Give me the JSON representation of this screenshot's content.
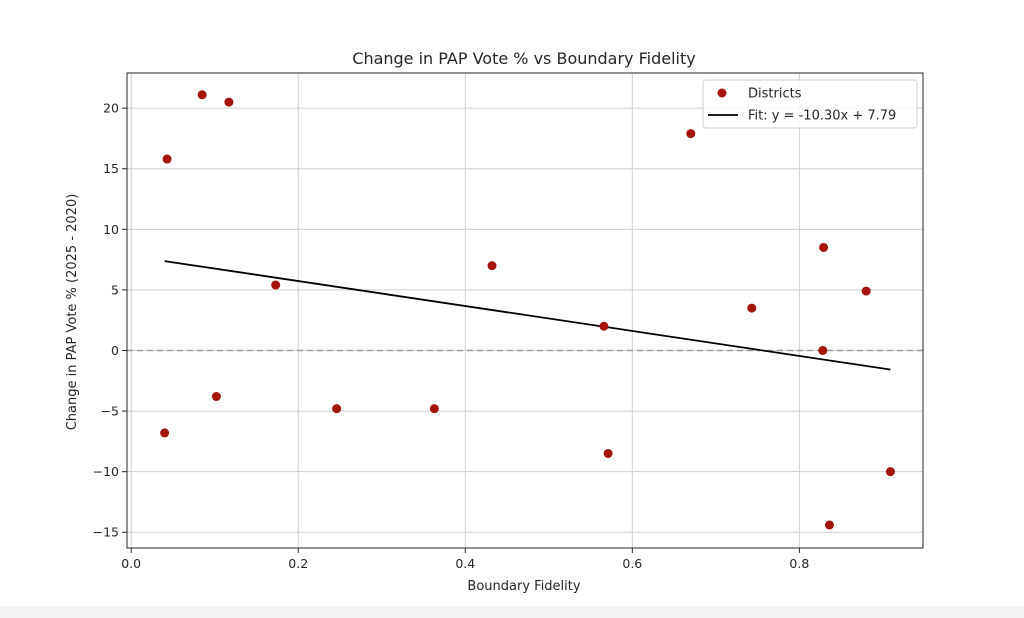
{
  "chart_data": {
    "type": "scatter",
    "title": "Change in PAP Vote % vs Boundary Fidelity",
    "xlabel": "Boundary Fidelity",
    "ylabel": "Change in PAP Vote % (2025 - 2020)",
    "xlim": [
      -0.005,
      0.948
    ],
    "ylim": [
      -16.3,
      22.9
    ],
    "xticks": [
      0.0,
      0.2,
      0.4,
      0.6,
      0.8
    ],
    "xtick_labels": [
      "0.0",
      "0.2",
      "0.4",
      "0.6",
      "0.8"
    ],
    "yticks": [
      -15,
      -10,
      -5,
      0,
      5,
      10,
      15,
      20
    ],
    "ytick_labels": [
      "−15",
      "−10",
      "−5",
      "0",
      "5",
      "10",
      "15",
      "20"
    ],
    "grid": true,
    "legend_position": "top-right",
    "series": [
      {
        "name": "Districts",
        "kind": "scatter",
        "color": "#a3150a",
        "points": [
          {
            "x": 0.043,
            "y": 15.8
          },
          {
            "x": 0.085,
            "y": 21.1
          },
          {
            "x": 0.117,
            "y": 20.5
          },
          {
            "x": 0.173,
            "y": 5.4
          },
          {
            "x": 0.04,
            "y": -6.8
          },
          {
            "x": 0.102,
            "y": -3.8
          },
          {
            "x": 0.246,
            "y": -4.8
          },
          {
            "x": 0.363,
            "y": -4.8
          },
          {
            "x": 0.432,
            "y": 7.0
          },
          {
            "x": 0.566,
            "y": 2.0
          },
          {
            "x": 0.571,
            "y": -8.5
          },
          {
            "x": 0.67,
            "y": 17.9
          },
          {
            "x": 0.743,
            "y": 3.5
          },
          {
            "x": 0.829,
            "y": 8.5
          },
          {
            "x": 0.828,
            "y": 0.0
          },
          {
            "x": 0.836,
            "y": -14.4
          },
          {
            "x": 0.88,
            "y": 4.9
          },
          {
            "x": 0.909,
            "y": -10.0
          }
        ]
      },
      {
        "name": "Fit: y = -10.30x + 7.79",
        "kind": "line",
        "color": "#000000",
        "slope": -10.3,
        "intercept": 7.79,
        "x_range": [
          0.04,
          0.909
        ]
      }
    ],
    "reference_line": {
      "y": 0,
      "style": "dashed",
      "color": "#999999"
    }
  }
}
